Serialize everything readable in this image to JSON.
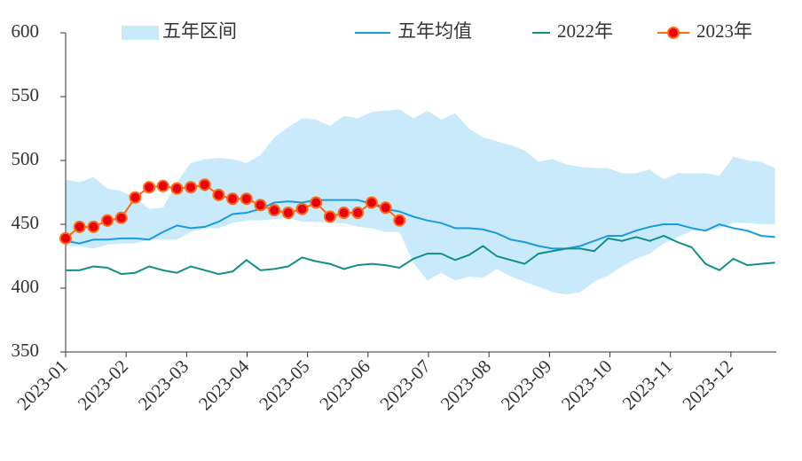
{
  "chart_data": {
    "type": "line",
    "legend": "top",
    "xlim": [
      1,
      12.75
    ],
    "ylim": [
      350,
      600
    ],
    "yticks": [
      350,
      400,
      450,
      500,
      550,
      600
    ],
    "xticks": [
      {
        "value": 1,
        "label": "2023-01"
      },
      {
        "value": 2,
        "label": "2023-02"
      },
      {
        "value": 3,
        "label": "2023-03"
      },
      {
        "value": 4,
        "label": "2023-04"
      },
      {
        "value": 5,
        "label": "2023-05"
      },
      {
        "value": 6,
        "label": "2023-06"
      },
      {
        "value": 7,
        "label": "2023-07"
      },
      {
        "value": 8,
        "label": "2023-08"
      },
      {
        "value": 9,
        "label": "2023-09"
      },
      {
        "value": 10,
        "label": "2023-10"
      },
      {
        "value": 11,
        "label": "2023-11"
      },
      {
        "value": 12,
        "label": "2023-12"
      }
    ],
    "x": [
      1,
      1.23,
      1.46,
      1.69,
      1.92,
      2.15,
      2.38,
      2.61,
      2.84,
      3.07,
      3.3,
      3.53,
      3.76,
      3.99,
      4.22,
      4.45,
      4.68,
      4.91,
      5.14,
      5.37,
      5.6,
      5.83,
      6.06,
      6.29,
      6.52,
      6.75,
      6.98,
      7.21,
      7.44,
      7.67,
      7.9,
      8.13,
      8.36,
      8.59,
      8.82,
      9.05,
      9.28,
      9.51,
      9.74,
      9.97,
      10.2,
      10.43,
      10.66,
      10.89,
      11.12,
      11.35,
      11.58,
      11.81,
      12.04,
      12.27,
      12.5,
      12.73
    ],
    "band": {
      "name": "五年区间",
      "color": "#c9eafb",
      "upper": [
        485,
        483,
        487,
        478,
        476,
        471,
        462,
        463,
        483,
        498,
        501,
        502,
        501,
        498,
        504,
        518,
        526,
        533,
        532,
        527,
        535,
        533,
        538,
        539,
        540,
        533,
        539,
        532,
        537,
        525,
        518,
        515,
        512,
        508,
        499,
        501,
        497,
        495,
        494,
        494,
        490,
        490,
        493,
        485,
        490,
        490,
        490,
        488,
        503,
        500,
        499,
        494
      ],
      "lower": [
        433,
        433,
        431,
        434,
        435,
        435,
        438,
        438,
        438,
        444,
        447,
        447,
        451,
        453,
        453,
        454,
        455,
        452,
        452,
        451,
        451,
        448,
        447,
        444,
        444,
        420,
        406,
        412,
        406,
        409,
        408,
        415,
        409,
        405,
        401,
        397,
        395,
        397,
        405,
        410,
        417,
        423,
        427,
        435,
        440,
        445,
        445,
        447,
        451,
        451,
        450,
        450
      ]
    },
    "series": [
      {
        "name": "五年均值",
        "color": "#1a9ae0",
        "values": [
          437,
          435,
          438,
          438,
          439,
          439,
          438,
          444,
          449,
          447,
          448,
          452,
          458,
          459,
          462,
          467,
          468,
          467,
          469,
          469,
          469,
          469,
          466,
          462,
          460,
          456,
          453,
          451,
          447,
          447,
          446,
          443,
          438,
          436,
          433,
          431,
          431,
          433,
          437,
          441,
          441,
          445,
          448,
          450,
          450,
          447,
          445,
          450,
          447,
          445,
          441,
          440
        ]
      },
      {
        "name": "2022年",
        "color": "#138f87",
        "values": [
          414,
          414,
          417,
          416,
          411,
          412,
          417,
          414,
          412,
          417,
          414,
          411,
          413,
          422,
          414,
          415,
          417,
          424,
          421,
          419,
          415,
          418,
          419,
          418,
          416,
          423,
          427,
          427,
          422,
          426,
          433,
          425,
          422,
          419,
          427,
          429,
          431,
          431,
          429,
          439,
          437,
          440,
          437,
          441,
          436,
          432,
          419,
          414,
          423,
          418,
          419,
          420
        ]
      },
      {
        "name": "2023年",
        "color": "#ff6a13",
        "marker_color": "#e8000b",
        "values": [
          439,
          448,
          448,
          453,
          455,
          471,
          479,
          480,
          478,
          479,
          481,
          473,
          470,
          470,
          465,
          461,
          459,
          462,
          467,
          456,
          459,
          459,
          467,
          463,
          453,
          null,
          null,
          null,
          null,
          null,
          null,
          null,
          null,
          null,
          null,
          null,
          null,
          null,
          null,
          null,
          null,
          null,
          null,
          null,
          null,
          null,
          null,
          null,
          null,
          null,
          null,
          null
        ]
      }
    ]
  }
}
